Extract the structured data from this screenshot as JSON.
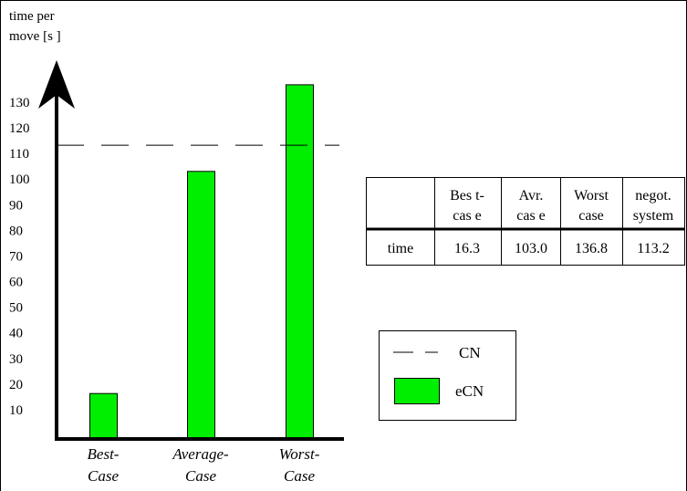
{
  "chart_data": {
    "type": "bar",
    "ylabel": [
      "time per",
      "move [s ]"
    ],
    "yticks": [
      10,
      20,
      30,
      40,
      50,
      60,
      70,
      80,
      90,
      100,
      110,
      120,
      130
    ],
    "ylim": [
      0,
      150
    ],
    "categories": [
      [
        "Best-",
        "Case"
      ],
      [
        "Average-",
        "Case"
      ],
      [
        "Worst-",
        "Case"
      ]
    ],
    "series": [
      {
        "name": "eCN",
        "values": [
          16.3,
          103.0,
          136.8
        ],
        "color": "#00ee00"
      }
    ],
    "reference_line": {
      "name": "CN",
      "value": 113.2,
      "style": "dashed"
    },
    "grid": false,
    "legend": {
      "placement": "bottom-right",
      "items": [
        {
          "label": "CN",
          "marker": "dashed-line"
        },
        {
          "label": "eCN",
          "marker": "green-box"
        }
      ]
    },
    "table": {
      "headers": [
        "",
        [
          "Bes t-",
          "cas e"
        ],
        [
          "Avr.",
          "cas e"
        ],
        [
          "Worst",
          "case"
        ],
        [
          "negot.",
          "system"
        ]
      ],
      "rows": [
        {
          "label": "time",
          "values": [
            "16.3",
            "103.0",
            "136.8",
            "113.2"
          ]
        }
      ]
    }
  }
}
